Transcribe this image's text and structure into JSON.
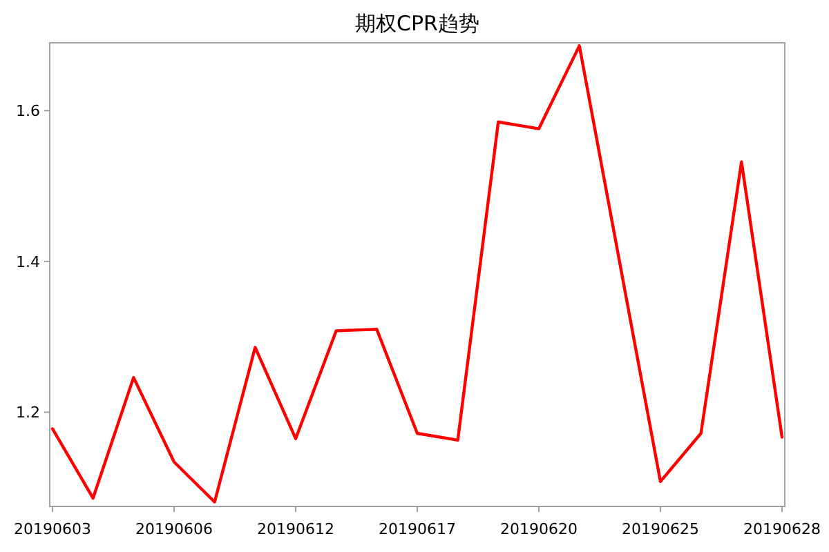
{
  "chart_data": {
    "type": "line",
    "title": "期权CPR趋势",
    "categories": [
      "20190603",
      null,
      null,
      "20190606",
      null,
      null,
      "20190612",
      null,
      null,
      "20190617",
      null,
      null,
      "20190620",
      null,
      null,
      "20190625",
      null,
      null,
      "20190628"
    ],
    "series": [
      {
        "color": "#ff0000",
        "values": [
          1.178,
          1.086,
          1.246,
          1.134,
          1.081,
          1.286,
          1.165,
          1.308,
          1.31,
          1.172,
          1.163,
          1.585,
          1.576,
          1.686,
          1.397,
          1.108,
          1.172,
          1.532,
          1.167
        ]
      }
    ],
    "ylim": [
      1.075,
      1.69
    ],
    "yticks": [
      1.2,
      1.4,
      1.6
    ],
    "marker": "none",
    "line_style": "solid"
  }
}
